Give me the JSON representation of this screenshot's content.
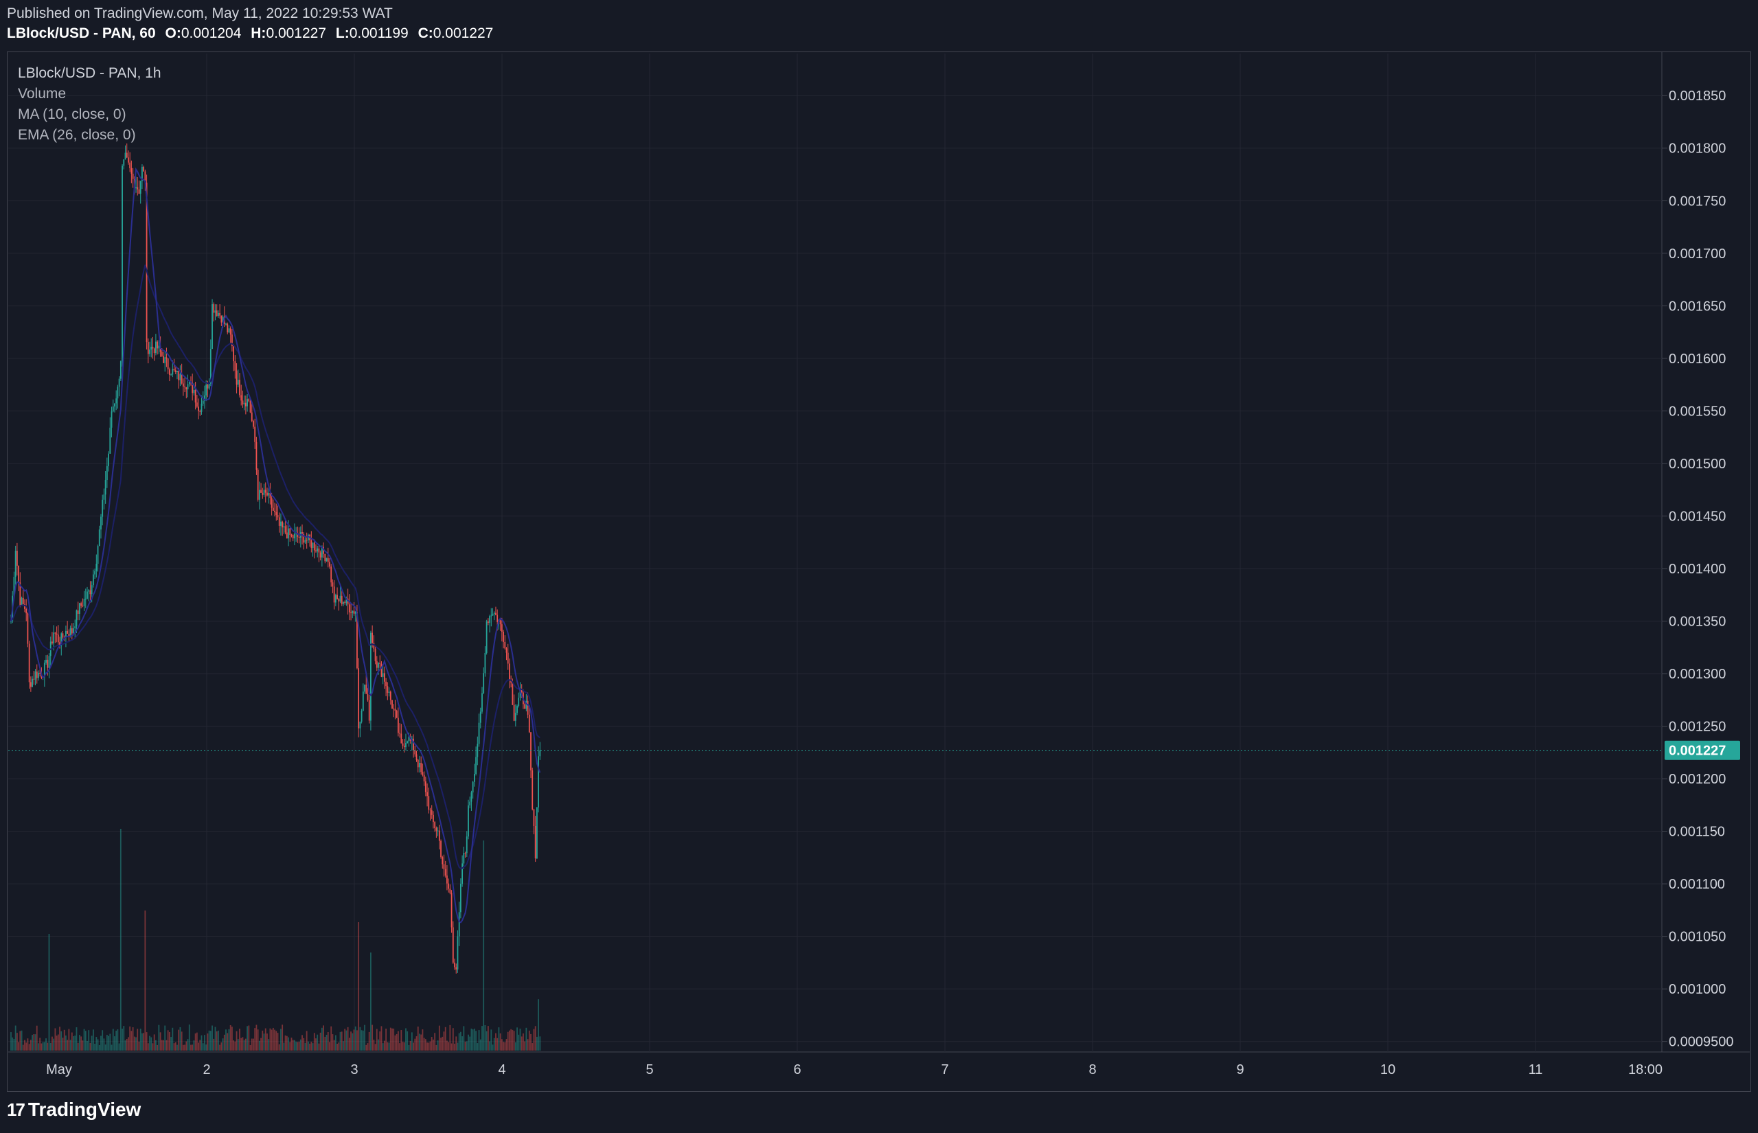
{
  "header": {
    "published": "Published on TradingView.com, May 11, 2022 10:29:53 WAT",
    "symbol_line": "LBlock/USD - PAN, 60",
    "o_label": "O:",
    "o_value": "0.001204",
    "h_label": "H:",
    "h_value": "0.001227",
    "l_label": "L:",
    "l_value": "0.001199",
    "c_label": "C:",
    "c_value": "0.001227"
  },
  "legend": {
    "title": "LBlock/USD - PAN, 1h",
    "volume": "Volume",
    "ma": "MA (10, close, 0)",
    "ema": "EMA (26, close, 0)"
  },
  "branding": {
    "logo_text": "TradingView",
    "logo_icon": "tradingview-logo-icon"
  },
  "colors": {
    "background": "#161a25",
    "up": "#26a69a",
    "down": "#ef5350",
    "ma": "#2a2e8f",
    "ema": "#1c2066",
    "grid": "#242733",
    "price_label_bg": "#26a69a"
  },
  "chart_data": {
    "type": "candlestick",
    "title": "LBlock/USD - PAN, 1h",
    "xlabel": "",
    "ylabel": "",
    "ylim": [
      0.00094,
      0.00189
    ],
    "y_ticks": [
      "0.001850",
      "0.001800",
      "0.001750",
      "0.001700",
      "0.001650",
      "0.001600",
      "0.001550",
      "0.001500",
      "0.001450",
      "0.001400",
      "0.001350",
      "0.001300",
      "0.001250",
      "0.001200",
      "0.001150",
      "0.001100",
      "0.001050",
      "0.001000",
      "0.0009500"
    ],
    "x_ticks": [
      "May",
      "2",
      "3",
      "4",
      "5",
      "6",
      "7",
      "8",
      "9",
      "10",
      "11",
      "18:00"
    ],
    "last_price": "0.001227",
    "grid": true,
    "anchors": [
      [
        0,
        0.00135
      ],
      [
        3,
        0.00142
      ],
      [
        6,
        0.00137
      ],
      [
        10,
        0.00136
      ],
      [
        12,
        0.00129
      ],
      [
        16,
        0.0013
      ],
      [
        20,
        0.0013
      ],
      [
        24,
        0.00131
      ],
      [
        28,
        0.00134
      ],
      [
        32,
        0.00133
      ],
      [
        36,
        0.00134
      ],
      [
        40,
        0.00134
      ],
      [
        44,
        0.00136
      ],
      [
        48,
        0.00137
      ],
      [
        52,
        0.00138
      ],
      [
        56,
        0.00141
      ],
      [
        60,
        0.00146
      ],
      [
        64,
        0.00151
      ],
      [
        66,
        0.00155
      ],
      [
        70,
        0.00157
      ],
      [
        72,
        0.0016
      ],
      [
        73,
        0.00178
      ],
      [
        75,
        0.00179
      ],
      [
        80,
        0.00177
      ],
      [
        84,
        0.00176
      ],
      [
        86,
        0.00178
      ],
      [
        88,
        0.00177
      ],
      [
        89,
        0.00161
      ],
      [
        96,
        0.00161
      ],
      [
        104,
        0.00159
      ],
      [
        112,
        0.00158
      ],
      [
        120,
        0.00157
      ],
      [
        123,
        0.00155
      ],
      [
        130,
        0.00158
      ],
      [
        132,
        0.00165
      ],
      [
        138,
        0.00164
      ],
      [
        144,
        0.00162
      ],
      [
        148,
        0.00158
      ],
      [
        152,
        0.00156
      ],
      [
        156,
        0.00156
      ],
      [
        160,
        0.00152
      ],
      [
        162,
        0.00147
      ],
      [
        168,
        0.00147
      ],
      [
        176,
        0.00144
      ],
      [
        184,
        0.00143
      ],
      [
        192,
        0.00143
      ],
      [
        200,
        0.00142
      ],
      [
        208,
        0.00141
      ],
      [
        212,
        0.00137
      ],
      [
        218,
        0.00137
      ],
      [
        224,
        0.00136
      ],
      [
        226,
        0.00136
      ],
      [
        228,
        0.00125
      ],
      [
        232,
        0.00129
      ],
      [
        235,
        0.00126
      ],
      [
        236,
        0.00134
      ],
      [
        240,
        0.00131
      ],
      [
        244,
        0.0013
      ],
      [
        248,
        0.00128
      ],
      [
        252,
        0.00126
      ],
      [
        256,
        0.00123
      ],
      [
        260,
        0.00124
      ],
      [
        264,
        0.00123
      ],
      [
        268,
        0.00121
      ],
      [
        272,
        0.00119
      ],
      [
        276,
        0.00116
      ],
      [
        280,
        0.00115
      ],
      [
        284,
        0.00111
      ],
      [
        288,
        0.00109
      ],
      [
        290,
        0.00103
      ],
      [
        292,
        0.00102
      ],
      [
        294,
        0.00107
      ],
      [
        296,
        0.00112
      ],
      [
        298,
        0.00113
      ],
      [
        300,
        0.00117
      ],
      [
        304,
        0.00121
      ],
      [
        308,
        0.00126
      ],
      [
        310,
        0.0013
      ],
      [
        312,
        0.00135
      ],
      [
        316,
        0.00136
      ],
      [
        320,
        0.00135
      ],
      [
        324,
        0.00133
      ],
      [
        328,
        0.00129
      ],
      [
        330,
        0.00126
      ],
      [
        334,
        0.00128
      ],
      [
        338,
        0.00127
      ],
      [
        340,
        0.00124
      ],
      [
        342,
        0.00117
      ],
      [
        344,
        0.00113
      ],
      [
        346,
        0.00122
      ],
      [
        347,
        0.001227
      ]
    ],
    "volume_spikes": [
      [
        25,
        0.5
      ],
      [
        72,
        0.95
      ],
      [
        88,
        0.6
      ],
      [
        228,
        0.55
      ],
      [
        236,
        0.42
      ],
      [
        310,
        0.9
      ],
      [
        346,
        0.22
      ]
    ],
    "volume_scale_note": "Volume"
  }
}
